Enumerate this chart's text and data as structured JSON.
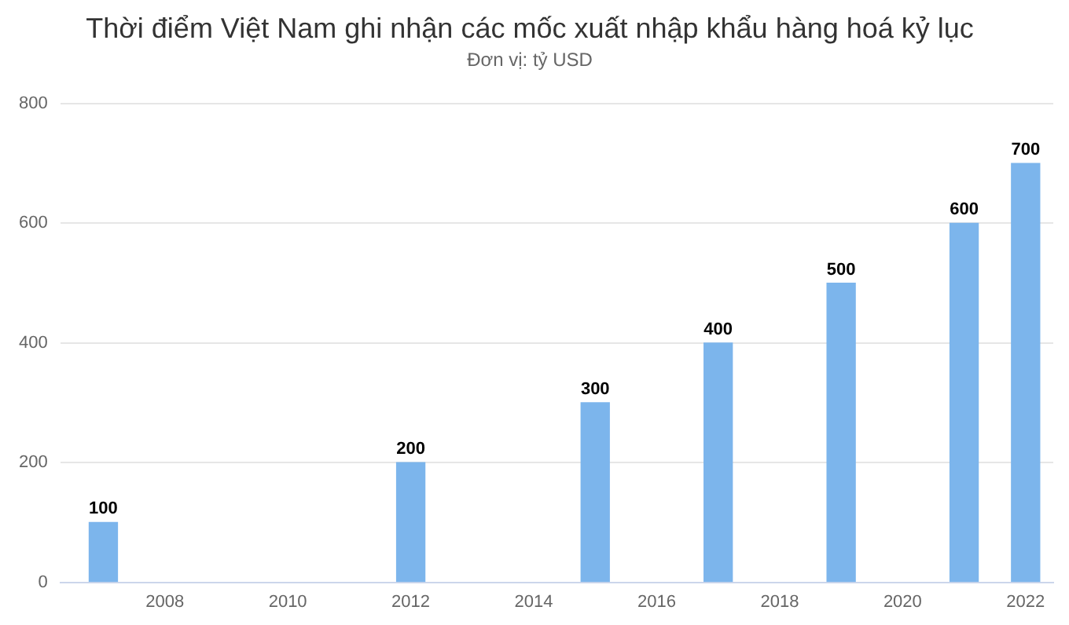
{
  "chart_data": {
    "type": "bar",
    "title": "Thời điểm Việt Nam ghi nhận các mốc xuất nhập khẩu hàng hoá kỷ lục",
    "subtitle": "Đơn vị: tỷ USD",
    "x": [
      2007,
      2012,
      2015,
      2017,
      2019,
      2021,
      2022
    ],
    "values": [
      100,
      200,
      300,
      400,
      500,
      600,
      700
    ],
    "color": "#7cb5ec",
    "xlim": [
      2006.3,
      2022.45
    ],
    "xticks": [
      2008,
      2010,
      2012,
      2014,
      2016,
      2018,
      2020,
      2022
    ],
    "ylim": [
      0,
      800
    ],
    "yticks": [
      0,
      200,
      400,
      600,
      800
    ],
    "grid": "y",
    "legend": false,
    "data_labels": true
  }
}
